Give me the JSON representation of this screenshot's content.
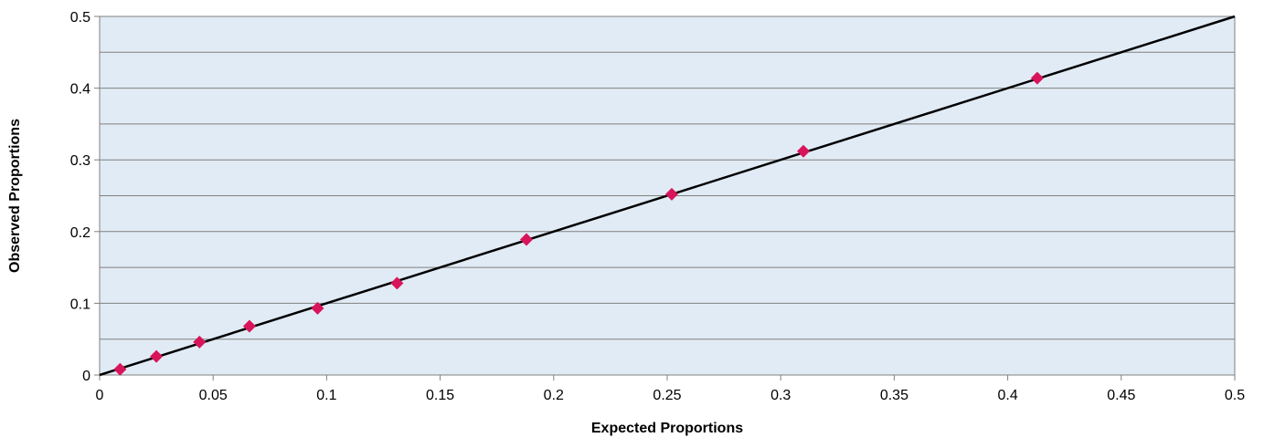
{
  "chart_data": {
    "type": "scatter",
    "title": "",
    "xlabel": "Expected Proportions",
    "ylabel": "Observed Proportions",
    "xlim": [
      0,
      0.5
    ],
    "ylim": [
      0,
      0.5
    ],
    "x_ticks": [
      "0",
      "0.05",
      "0.1",
      "0.15",
      "0.2",
      "0.25",
      "0.3",
      "0.35",
      "0.4",
      "0.45",
      "0.5"
    ],
    "y_ticks": [
      "0",
      "0.1",
      "0.2",
      "0.3",
      "0.4",
      "0.5"
    ],
    "grid": true,
    "reference_line": {
      "from": [
        0,
        0
      ],
      "to": [
        0.5,
        0.5
      ]
    },
    "series": [
      {
        "x": [
          0.009,
          0.025,
          0.044,
          0.066,
          0.096,
          0.131,
          0.188,
          0.252,
          0.31,
          0.413
        ],
        "y": [
          0.008,
          0.026,
          0.046,
          0.068,
          0.093,
          0.128,
          0.189,
          0.252,
          0.312,
          0.414
        ]
      }
    ],
    "colors": {
      "plot_background": "#e1ebf5",
      "gridline": "#808080",
      "marker": "#d8145a",
      "reference_line": "#000000"
    }
  }
}
